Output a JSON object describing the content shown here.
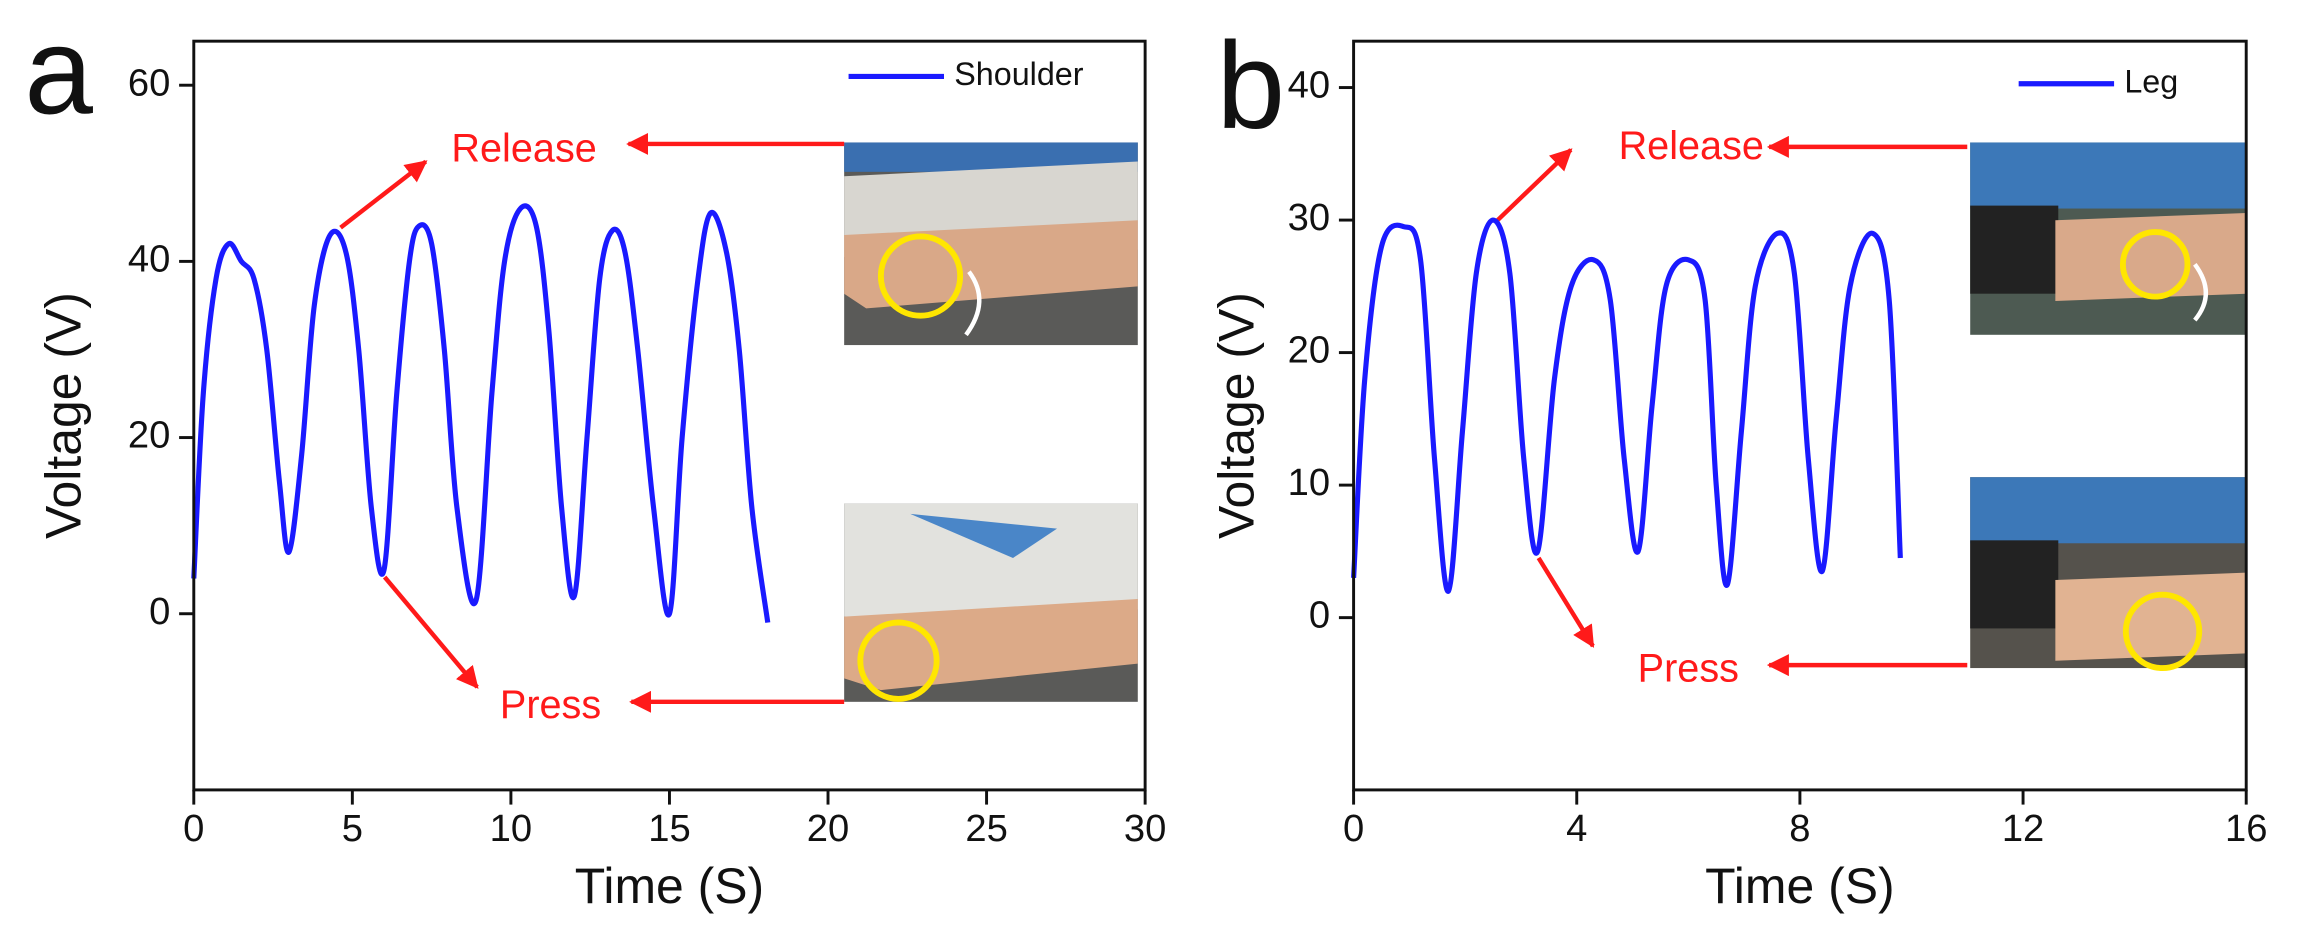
{
  "chart_data": [
    {
      "type": "line",
      "panel_label": "a",
      "xlabel": "Time (S)",
      "ylabel": "Voltage (V)",
      "x": [
        0,
        0.3,
        0.7,
        1.1,
        1.5,
        1.9,
        2.3,
        2.7,
        3.0,
        3.4,
        3.8,
        4.3,
        4.8,
        5.2,
        5.6,
        6.0,
        6.4,
        6.8,
        7.1,
        7.5,
        7.9,
        8.3,
        8.9,
        9.4,
        9.8,
        10.3,
        10.8,
        11.2,
        11.6,
        12.0,
        12.4,
        12.8,
        13.2,
        13.6,
        14.0,
        14.5,
        15.0,
        15.4,
        15.9,
        16.3,
        16.8,
        17.2,
        17.6,
        18.1
      ],
      "series": [
        {
          "name": "Shoulder",
          "color": "#1a1aff",
          "values": [
            4,
            25,
            38,
            42,
            40,
            38,
            30,
            15,
            7,
            18,
            35,
            43,
            41,
            30,
            12,
            5,
            25,
            40,
            44,
            42,
            30,
            12,
            1.5,
            25,
            40,
            46,
            44,
            32,
            12,
            2,
            20,
            38,
            43.5,
            41,
            30,
            12,
            0,
            20,
            38,
            45.5,
            41,
            30,
            12,
            -1
          ]
        }
      ],
      "xlim": [
        0,
        30
      ],
      "ylim": [
        -20,
        65
      ],
      "xticks": [
        0,
        5,
        10,
        15,
        20,
        25,
        30
      ],
      "yticks": [
        0,
        20,
        40,
        60
      ],
      "annotations": [
        "Release",
        "Press"
      ]
    },
    {
      "type": "line",
      "panel_label": "b",
      "xlabel": "Time (S)",
      "ylabel": "Voltage (V)",
      "x": [
        0,
        0.2,
        0.5,
        0.9,
        1.2,
        1.45,
        1.7,
        1.95,
        2.2,
        2.5,
        2.8,
        3.05,
        3.3,
        3.6,
        3.9,
        4.3,
        4.6,
        4.85,
        5.1,
        5.35,
        5.6,
        6.0,
        6.3,
        6.5,
        6.7,
        6.95,
        7.2,
        7.6,
        7.9,
        8.15,
        8.4,
        8.65,
        8.9,
        9.3,
        9.6,
        9.8
      ],
      "series": [
        {
          "name": "Leg",
          "color": "#1a1aff",
          "values": [
            3,
            18,
            28,
            29.5,
            27,
            12,
            2,
            14,
            26,
            30,
            26,
            12,
            5,
            18,
            25,
            27,
            24,
            12,
            5,
            16,
            25,
            27,
            24,
            10,
            2.5,
            14,
            25,
            29,
            26,
            12,
            3.5,
            15,
            25,
            29,
            24,
            4.5
          ]
        }
      ],
      "xlim": [
        0,
        16
      ],
      "ylim": [
        -13,
        43.5
      ],
      "xticks": [
        0,
        4,
        8,
        12,
        16
      ],
      "yticks": [
        0,
        10,
        20,
        30,
        40
      ],
      "annotations": [
        "Release",
        "Press"
      ]
    }
  ]
}
